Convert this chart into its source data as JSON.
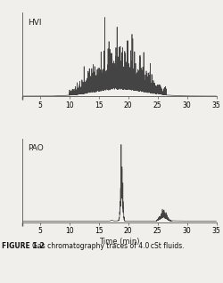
{
  "title_hvi": "HVI",
  "title_pao": "PAO",
  "xlabel": "Time (min)",
  "figure_caption": "FIGURE 1.2   Gas chromatography traces of 4.0 cSt fluids.",
  "xmin": 2,
  "xmax": 35,
  "xticks": [
    5,
    10,
    15,
    20,
    25,
    30,
    35
  ],
  "line_color": "#444444",
  "bg_color": "#f0efeb",
  "figsize": [
    2.5,
    3.18
  ],
  "dpi": 100,
  "caption_bold": "FIGURE 1.2",
  "caption_rest": "   Gas chromatography traces of 4.0 cSt fluids."
}
